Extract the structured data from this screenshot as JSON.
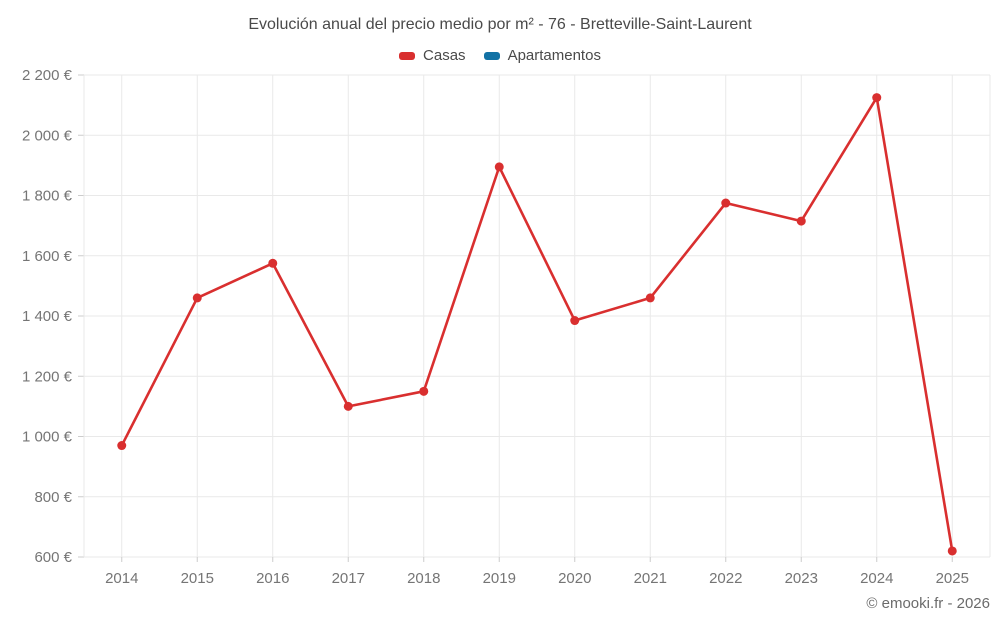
{
  "title": "Evolución anual del precio medio por m² - 76 - Bretteville-Saint-Laurent",
  "footer": "© emooki.fr - 2026",
  "legend": [
    {
      "label": "Casas",
      "color": "#d92f2f"
    },
    {
      "label": "Apartamentos",
      "color": "#1272a5"
    }
  ],
  "colors": {
    "background": "#ffffff",
    "grid": "#e9e9e9",
    "tick": "#cccccc",
    "axis_label": "#757575",
    "title_text": "#4a4a4a",
    "footer_text": "#6b6b6b",
    "casas_red": "#d92f2f",
    "apartamentos_blue": "#1272a5"
  },
  "chart_data": {
    "type": "line",
    "title": "Evolución anual del precio medio por m² - 76 - Bretteville-Saint-Laurent",
    "categories": [
      "2014",
      "2015",
      "2016",
      "2017",
      "2018",
      "2019",
      "2020",
      "2021",
      "2022",
      "2023",
      "2024",
      "2025"
    ],
    "series": [
      {
        "name": "Casas",
        "color": "#d92f2f",
        "values": [
          970,
          1460,
          1575,
          1100,
          1150,
          1895,
          1385,
          1460,
          1775,
          1715,
          2125,
          620
        ]
      },
      {
        "name": "Apartamentos",
        "color": "#1272a5",
        "values": []
      }
    ],
    "xlabel": "",
    "ylabel": "",
    "ylim": [
      600,
      2200
    ],
    "ytick_step": 200,
    "ytick_suffix": " €",
    "grid": true,
    "legend_position": "top"
  }
}
